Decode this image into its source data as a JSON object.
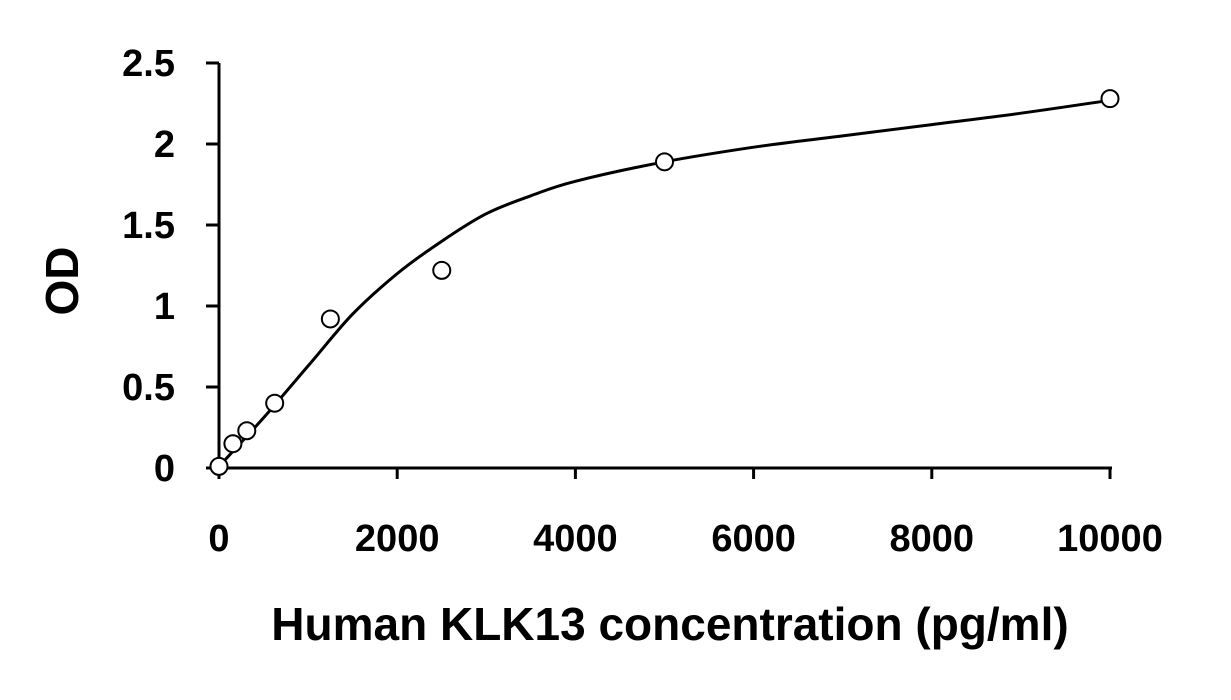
{
  "chart_data": {
    "type": "scatter",
    "title": "",
    "xlabel": "Human KLK13 concentration (pg/ml)",
    "ylabel": "OD",
    "xlim": [
      0,
      10000
    ],
    "ylim": [
      0,
      2.5
    ],
    "x_ticks": [
      "0",
      "2000",
      "4000",
      "6000",
      "8000",
      "10000"
    ],
    "y_ticks": [
      "0",
      "0.5",
      "1",
      "1.5",
      "2",
      "2.5"
    ],
    "x_tick_values": [
      0,
      2000,
      4000,
      6000,
      8000,
      10000
    ],
    "y_tick_values": [
      0,
      0.5,
      1,
      1.5,
      2,
      2.5
    ],
    "grid": false,
    "legend": "none",
    "series": [
      {
        "marker": "open-circle",
        "x": [
          0,
          156,
          312,
          625,
          1250,
          2500,
          5000,
          10000
        ],
        "y": [
          0.01,
          0.15,
          0.23,
          0.4,
          0.92,
          1.22,
          1.89,
          2.28
        ]
      }
    ],
    "fit_curve": {
      "x": [
        0,
        500,
        1000,
        1500,
        2000,
        2500,
        3000,
        3500,
        4000,
        5000,
        6000,
        7000,
        8000,
        9000,
        10000
      ],
      "y": [
        0.01,
        0.31,
        0.63,
        0.95,
        1.2,
        1.4,
        1.57,
        1.68,
        1.77,
        1.89,
        1.98,
        2.05,
        2.12,
        2.19,
        2.27
      ]
    },
    "colors": {
      "ink": "#000000",
      "background": "#ffffff",
      "marker_fill": "#ffffff"
    }
  }
}
